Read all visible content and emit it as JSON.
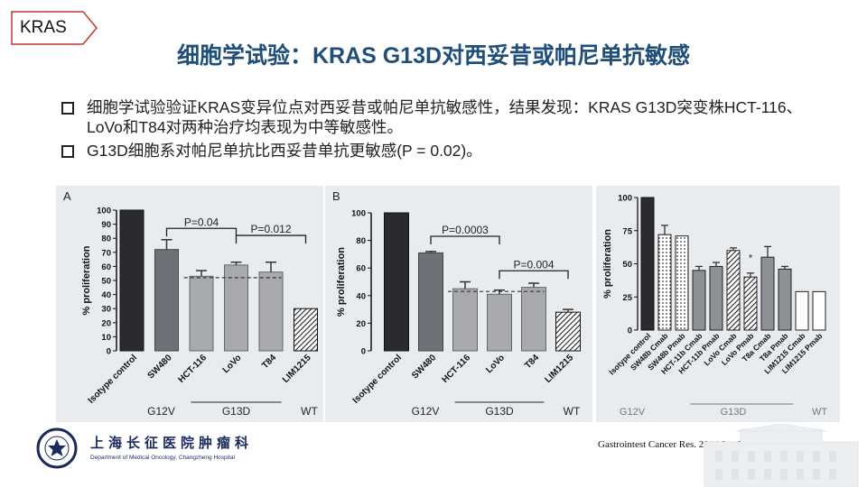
{
  "tag": {
    "label": "KRAS"
  },
  "title": "细胞学试验：KRAS G13D对西妥昔或帕尼单抗敏感",
  "bullets": [
    "细胞学试验验证KRAS变异位点对西妥昔或帕尼单抗敏感性，结果发现：KRAS G13D突变株HCT-116、LoVo和T84对两种治疗均表现为中等敏感性。",
    "G13D细胞系对帕尼单抗比西妥昔单抗更敏感(P = 0.02)。"
  ],
  "colors": {
    "title": "#1f4e79",
    "panel_bg": "#e9ecef",
    "tag_border": "#c0392b"
  },
  "panelA": {
    "letter": "A",
    "ylabel": "% proliferation",
    "yticks": [
      "0",
      "10",
      "20",
      "30",
      "40",
      "50",
      "60",
      "70",
      "80",
      "90",
      "100"
    ],
    "categories": [
      "Isotype control",
      "SW480",
      "HCT-116",
      "LoVo",
      "T84",
      "LIM1215"
    ],
    "p1": "P=0.04",
    "p2": "P=0.012",
    "groups": [
      "G12V",
      "G13D",
      "WT"
    ]
  },
  "panelB": {
    "letter": "B",
    "ylabel": "% proliferation",
    "yticks": [
      "0",
      "20",
      "40",
      "60",
      "80",
      "100"
    ],
    "categories": [
      "Isotype control",
      "SW480",
      "HCT-116",
      "LoVo",
      "T84",
      "LIM1215"
    ],
    "p1": "P=0.0003",
    "p2": "P=0.004",
    "groups": [
      "G12V",
      "G13D",
      "WT"
    ]
  },
  "panelC": {
    "ylabel": "% proliferation",
    "yticks": [
      "0",
      "25",
      "50",
      "75",
      "100"
    ],
    "categories": [
      "Isotype control",
      "SW48b Cmab",
      "SW48b Pmab",
      "HCT-11b Cmab",
      "HCT-11b Pmab",
      "LoVo Cmab",
      "LoVo Pmab",
      "T8a Cmab",
      "T8a Pmab",
      "LIM1215 Cmab",
      "LIM1215 Pmab"
    ],
    "star": "*",
    "groups": [
      "G12V",
      "G13D",
      "WT"
    ]
  },
  "chart_data": [
    {
      "type": "bar",
      "ylabel": "% proliferation",
      "ylim": [
        0,
        100
      ],
      "categories": [
        "Isotype control",
        "SW480",
        "HCT-116",
        "LoVo",
        "T84",
        "LIM1215"
      ],
      "values": [
        100,
        72,
        53,
        61,
        56,
        30
      ],
      "errors": [
        0,
        7,
        4,
        2,
        7,
        0
      ],
      "annotations": [
        "P=0.04",
        "P=0.012"
      ],
      "groups": [
        "G12V",
        "G13D",
        "WT"
      ]
    },
    {
      "type": "bar",
      "ylabel": "% proliferation",
      "ylim": [
        0,
        100
      ],
      "categories": [
        "Isotype control",
        "SW480",
        "HCT-116",
        "LoVo",
        "T84",
        "LIM1215"
      ],
      "values": [
        100,
        71,
        45,
        41,
        46,
        28
      ],
      "errors": [
        0,
        1,
        5,
        3,
        3,
        2
      ],
      "annotations": [
        "P=0.0003",
        "P=0.004"
      ],
      "groups": [
        "G12V",
        "G13D",
        "WT"
      ]
    },
    {
      "type": "bar",
      "ylabel": "% proliferation",
      "ylim": [
        0,
        100
      ],
      "categories": [
        "Isotype control",
        "SW48b Cmab",
        "SW48b Pmab",
        "HCT-11b Cmab",
        "HCT-11b Pmab",
        "LoVo Cmab",
        "LoVo Pmab",
        "T8a Cmab",
        "T8a Pmab",
        "LIM1215 Cmab",
        "LIM1215 Pmab"
      ],
      "values": [
        100,
        72,
        71,
        45,
        48,
        60,
        40,
        55,
        46,
        29,
        29
      ],
      "errors": [
        0,
        7,
        0,
        3,
        3,
        2,
        3,
        8,
        2,
        0,
        0
      ],
      "annotations": [
        "*"
      ],
      "groups": [
        "G12V",
        "G13D",
        "WT"
      ]
    }
  ],
  "footer": {
    "hospital_cn": "上海长征医院肿瘤科",
    "hospital_en": "Department of Medical Oncology, Changzheng Hospital",
    "citation": "Gastrointest Cancer Res. 2014 Jan-Feb; 7(1): 23–26."
  }
}
